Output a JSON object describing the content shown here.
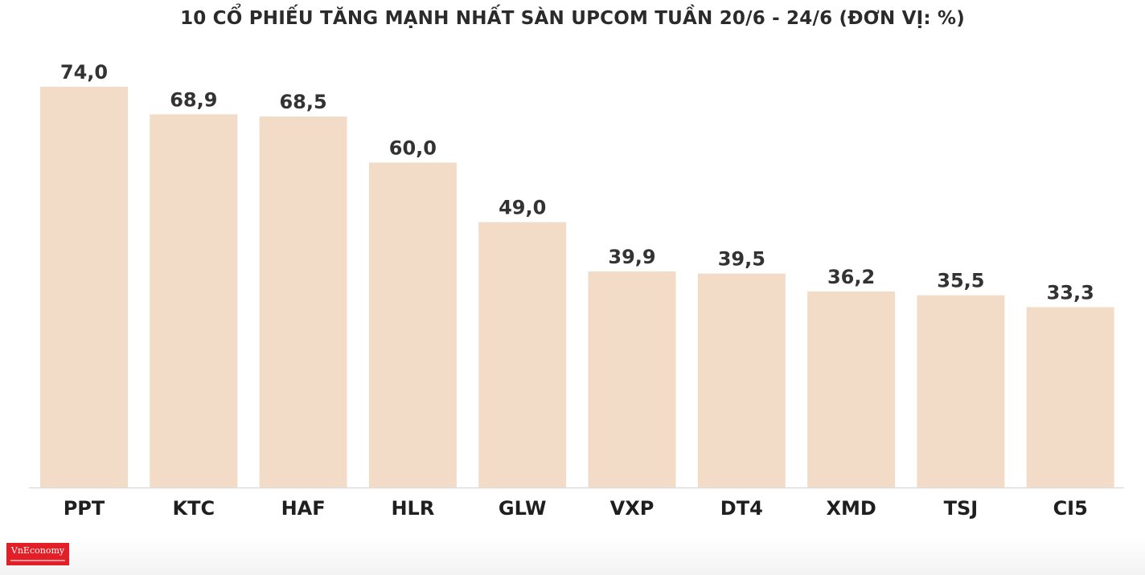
{
  "colors": {
    "bar": "#f2dcc8",
    "axis": "#dddddd",
    "logo": "#e41e26"
  },
  "logo": {
    "text": "VnEconomy"
  },
  "chart_data": {
    "type": "bar",
    "title": "10 CỔ PHIẾU TĂNG MẠNH NHẤT SÀN UPCOM TUẦN 20/6 - 24/6 (ĐƠN VỊ: %)",
    "xlabel": "",
    "ylabel": "",
    "categories": [
      "PPT",
      "KTC",
      "HAF",
      "HLR",
      "GLW",
      "VXP",
      "DT4",
      "XMD",
      "TSJ",
      "CI5"
    ],
    "values": [
      74.0,
      68.9,
      68.5,
      60.0,
      49.0,
      39.9,
      39.5,
      36.2,
      35.5,
      33.3
    ],
    "value_labels": [
      "74,0",
      "68,9",
      "68,5",
      "60,0",
      "49,0",
      "39,9",
      "39,5",
      "36,2",
      "35,5",
      "33,3"
    ],
    "ylim": [
      0,
      74
    ],
    "grid": false,
    "legend": "none"
  }
}
